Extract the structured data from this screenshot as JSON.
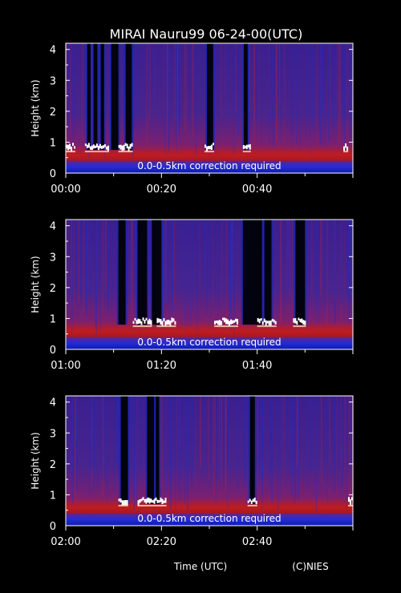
{
  "chart_data": {
    "type": "heatmap",
    "title": "MIRAI Nauru99 06-24-00(UTC)",
    "xlabel": "Time (UTC)",
    "credit": "(C)NIES",
    "colors": {
      "background": "#000000",
      "axis": "#ffffff",
      "text": "#ffffff",
      "low_signal": "#0b0f7a",
      "mid_signal": "#6a2a8a",
      "high_signal": "#d01808",
      "cloud": "#ffffff"
    },
    "panels": [
      {
        "ylabel": "Height (km)",
        "ylim": [
          0,
          4.2
        ],
        "yticks": [
          "0",
          "1",
          "2",
          "3",
          "4"
        ],
        "xlim_minutes": [
          0,
          60
        ],
        "xticks": [
          "00:00",
          "00:20",
          "00:40"
        ],
        "note": "0.0-0.5km correction required",
        "cloud_base_km": 0.75,
        "clear_columns_minutes": [
          [
            4.5,
            5.2
          ],
          [
            5.8,
            6.6
          ],
          [
            7.3,
            8.0
          ],
          [
            9.5,
            11.0
          ],
          [
            12.5,
            13.8
          ],
          [
            29.5,
            30.8
          ],
          [
            37.2,
            38.0
          ]
        ],
        "cloud_spans_minutes": [
          [
            0,
            2
          ],
          [
            4,
            9
          ],
          [
            11,
            14
          ],
          [
            29,
            31
          ],
          [
            37,
            38.5
          ],
          [
            58,
            59
          ]
        ]
      },
      {
        "ylabel": "Height (km)",
        "ylim": [
          0,
          4.2
        ],
        "yticks": [
          "0",
          "1",
          "2",
          "3",
          "4"
        ],
        "xlim_minutes": [
          60,
          120
        ],
        "xticks": [
          "01:00",
          "01:20",
          "01:40"
        ],
        "note": "0.0-0.5km correction required",
        "cloud_base_km": 0.8,
        "clear_columns_minutes": [
          [
            71.0,
            72.5
          ],
          [
            75.0,
            77.0
          ],
          [
            78.0,
            80.0
          ],
          [
            97.0,
            101.0
          ],
          [
            101.5,
            103.0
          ],
          [
            108.0,
            110.0
          ]
        ],
        "cloud_spans_minutes": [
          [
            74,
            78
          ],
          [
            79,
            83
          ],
          [
            91,
            96
          ],
          [
            100,
            104
          ],
          [
            107.5,
            110
          ]
        ]
      },
      {
        "ylabel": "Height (km)",
        "ylim": [
          0,
          4.2
        ],
        "yticks": [
          "0",
          "1",
          "2",
          "3",
          "4"
        ],
        "xlim_minutes": [
          120,
          180
        ],
        "xticks": [
          "02:00",
          "02:20",
          "02:40"
        ],
        "note": "0.0-0.5km correction required",
        "cloud_base_km": 0.7,
        "clear_columns_minutes": [
          [
            131.5,
            133.0
          ],
          [
            137.0,
            138.5
          ],
          [
            138.8,
            139.5
          ],
          [
            158.5,
            159.5
          ]
        ],
        "cloud_spans_minutes": [
          [
            131,
            133
          ],
          [
            135,
            141
          ],
          [
            158,
            160
          ],
          [
            179,
            180
          ]
        ]
      }
    ]
  }
}
